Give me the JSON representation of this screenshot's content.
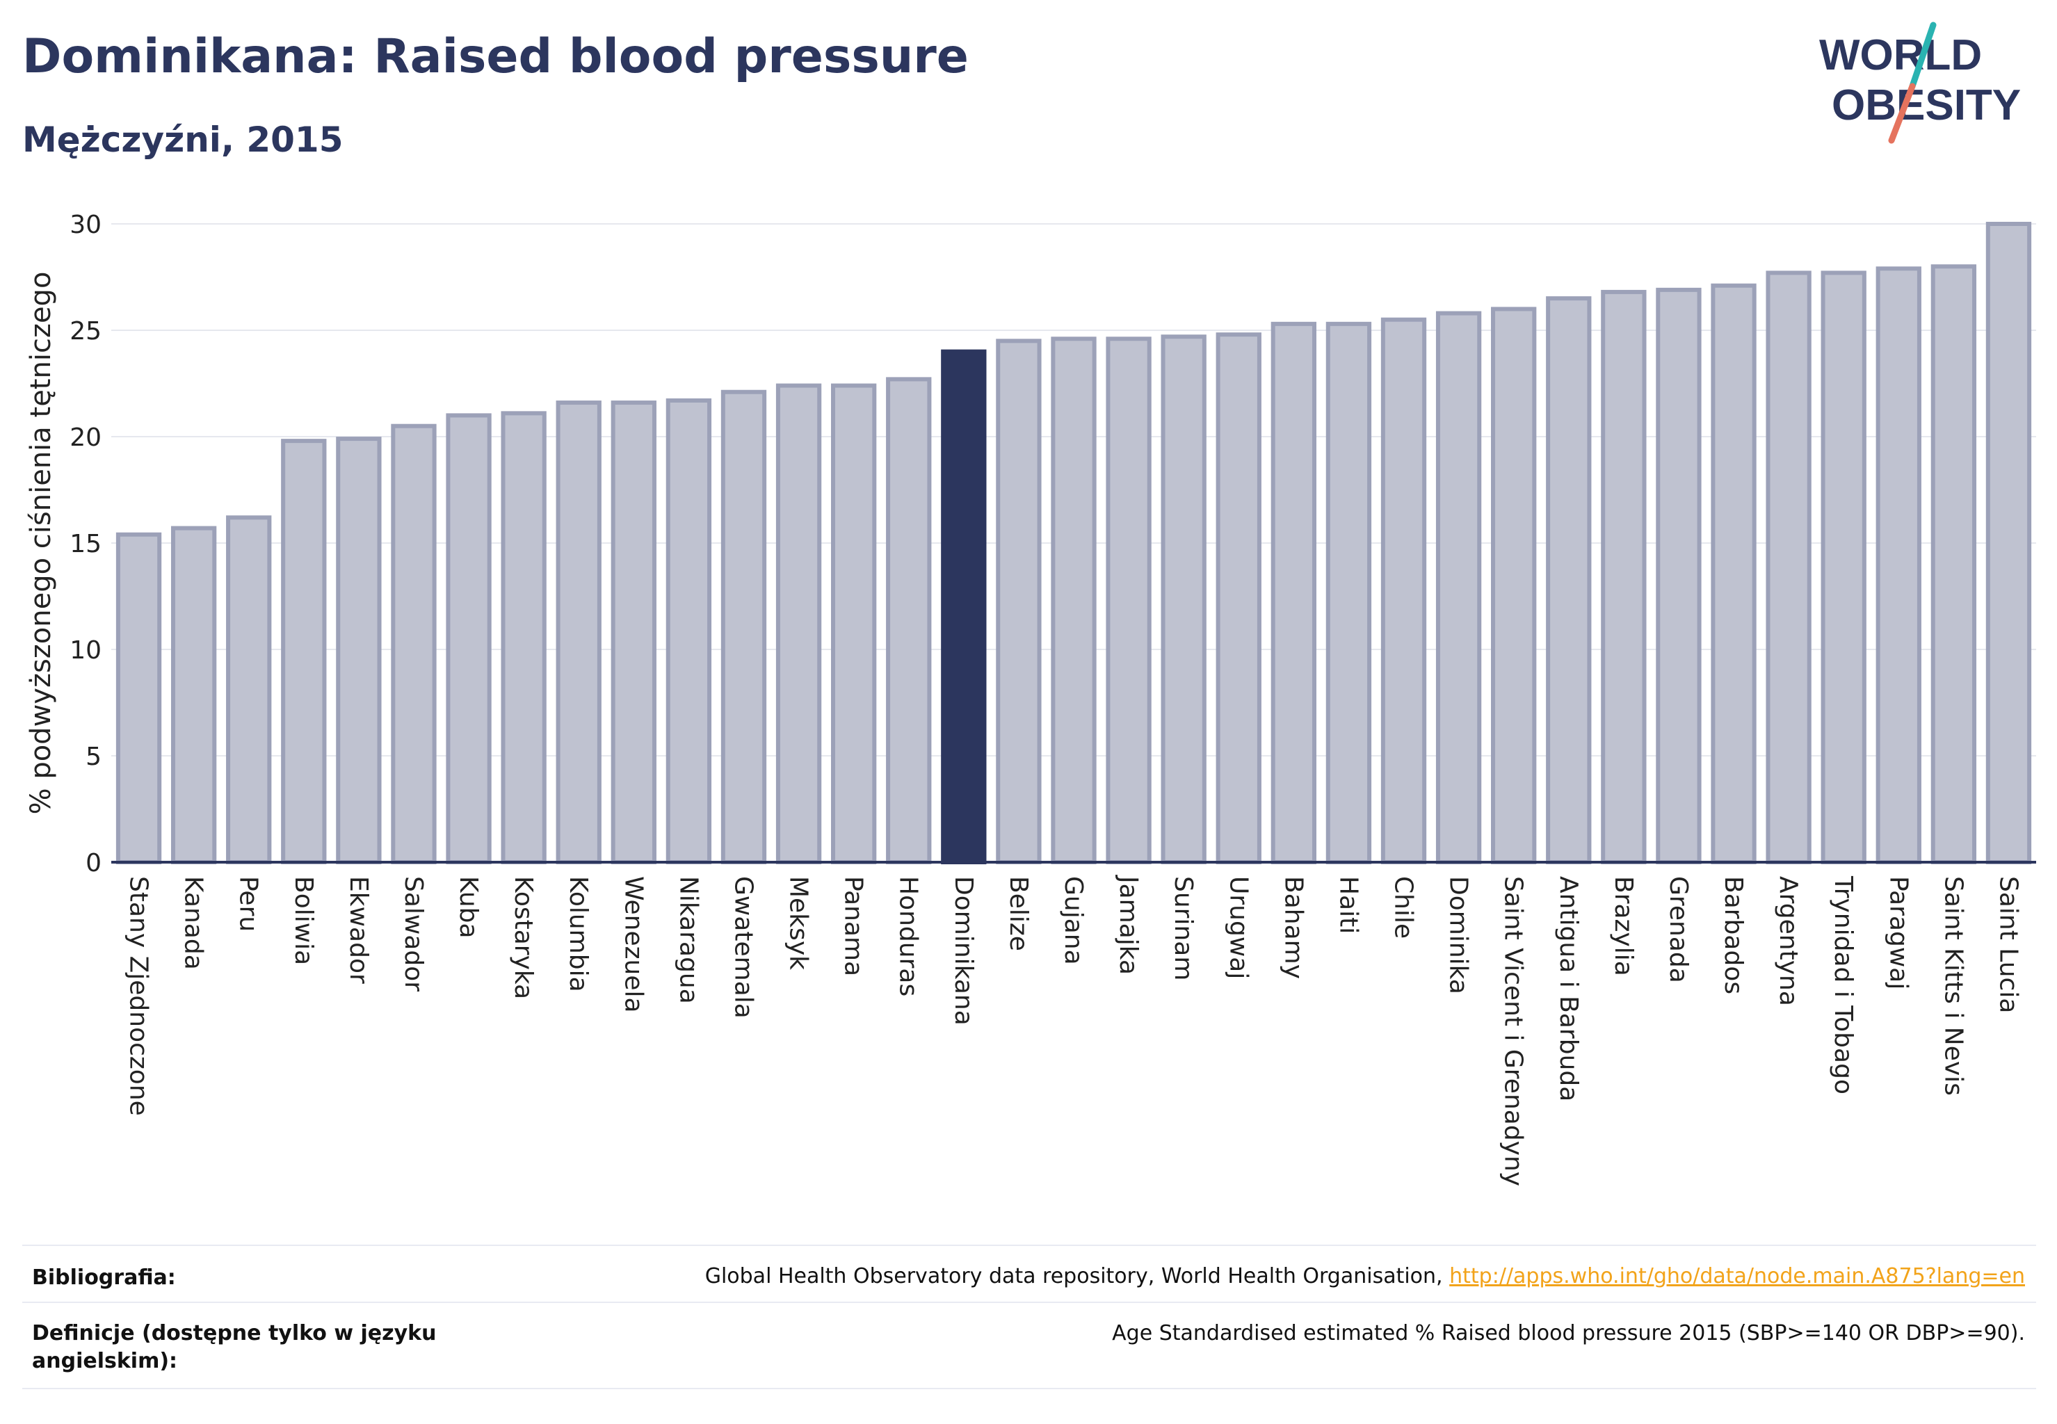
{
  "header": {
    "title": "Dominikana: Raised blood pressure",
    "subtitle": "Mężczyźni, 2015"
  },
  "logo": {
    "line1": "WORLD",
    "line2": "OBESITY",
    "colors": {
      "text": "#2c365e",
      "slash_teal": "#2ab3b1",
      "slash_coral": "#e5735e"
    }
  },
  "chart_data": {
    "type": "bar",
    "ylabel": "% podwyższonego ciśnienia tętniczego",
    "ylim": [
      0,
      30
    ],
    "yticks": [
      0,
      5,
      10,
      15,
      20,
      25,
      30
    ],
    "grid": true,
    "highlight": "Dominikana",
    "colors": {
      "bar": "#bfc2d0",
      "bar_edge": "#9ca1b8",
      "highlight": "#2c365e",
      "axis": "#2c365e",
      "grid": "#e6e8ee"
    },
    "categories": [
      "Stany Zjednoczone",
      "Kanada",
      "Peru",
      "Boliwia",
      "Ekwador",
      "Salwador",
      "Kuba",
      "Kostaryka",
      "Kolumbia",
      "Wenezuela",
      "Nikaragua",
      "Gwatemala",
      "Meksyk",
      "Panama",
      "Honduras",
      "Dominikana",
      "Belize",
      "Gujana",
      "Jamajka",
      "Surinam",
      "Urugwaj",
      "Bahamy",
      "Haiti",
      "Chile",
      "Dominika",
      "Saint Vicent i Grenadyny",
      "Antigua i Barbuda",
      "Brazylia",
      "Grenada",
      "Barbados",
      "Argentyna",
      "Trynidad i Tobago",
      "Paragwaj",
      "Saint Kitts i Nevis",
      "Saint Lucia"
    ],
    "values": [
      15.4,
      15.7,
      16.2,
      19.8,
      19.9,
      20.5,
      21.0,
      21.1,
      21.6,
      21.6,
      21.7,
      22.1,
      22.4,
      22.4,
      22.7,
      24.0,
      24.5,
      24.6,
      24.6,
      24.7,
      24.8,
      25.3,
      25.3,
      25.5,
      25.8,
      26.0,
      26.5,
      26.8,
      26.9,
      27.1,
      27.7,
      27.7,
      27.9,
      28.0,
      30.0
    ]
  },
  "footer": {
    "bibliography_label": "Bibliografia:",
    "bibliography_text": "Global Health Observatory data repository, World Health Organisation,",
    "bibliography_link": "http://apps.who.int/gho/data/node.main.A875?lang=en",
    "definitions_label": "Definicje (dostępne tylko w języku angielskim):",
    "definitions_text": "Age Standardised estimated % Raised blood pressure 2015 (SBP>=140 OR DBP>=90)."
  }
}
